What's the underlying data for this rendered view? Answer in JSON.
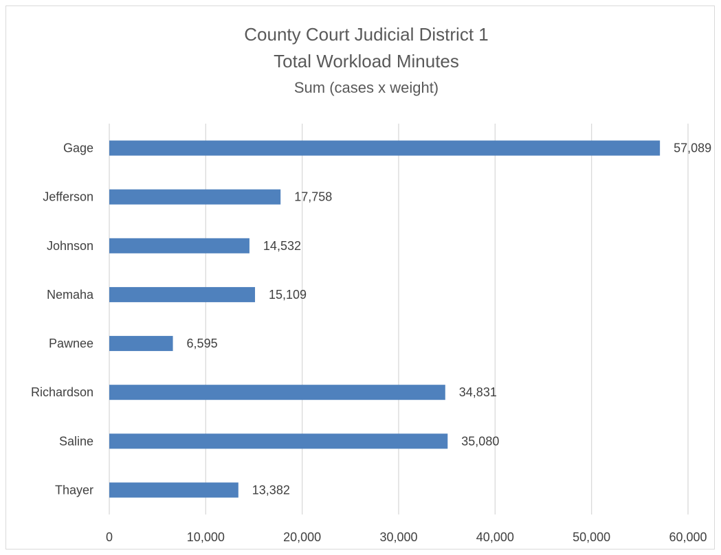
{
  "chart_data": {
    "type": "bar",
    "orientation": "horizontal",
    "title": "County Court Judicial District 1",
    "subtitle": "Total Workload Minutes",
    "subtitle2": "Sum (cases x weight)",
    "categories": [
      "Gage",
      "Jefferson",
      "Johnson",
      "Nemaha",
      "Pawnee",
      "Richardson",
      "Saline",
      "Thayer"
    ],
    "values": [
      57089,
      17758,
      14532,
      15109,
      6595,
      34831,
      35080,
      13382
    ],
    "value_labels": [
      "57,089",
      "17,758",
      "14,532",
      "15,109",
      "6,595",
      "34,831",
      "35,080",
      "13,382"
    ],
    "xlim": [
      0,
      60000
    ],
    "x_ticks": [
      0,
      10000,
      20000,
      30000,
      40000,
      50000,
      60000
    ],
    "x_tick_labels": [
      "0",
      "10,000",
      "20,000",
      "30,000",
      "40,000",
      "50,000",
      "60,000"
    ],
    "xlabel": "",
    "ylabel": "",
    "grid": "vertical",
    "legend": "none",
    "bar_color": "#4f81bd"
  }
}
